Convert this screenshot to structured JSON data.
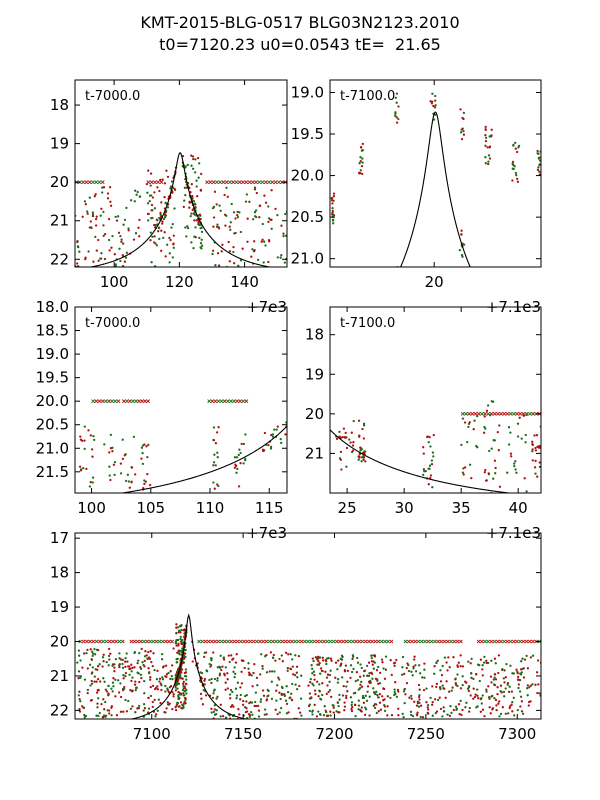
{
  "title": {
    "line1": "KMT-2015-BLG-0517 BLG03N2123.2010",
    "line2": "t0=7120.23 u0=0.0543 tE=  21.65"
  },
  "colors": {
    "green": "#1a6e1a",
    "red": "#b01010",
    "model": "#000000"
  },
  "model": {
    "t0": 7120.23,
    "u0": 0.0543,
    "tE": 21.65,
    "mag_base": 22.4,
    "mag_scale": 2.5
  },
  "chart_data": [
    {
      "id": "panel1",
      "type": "scatter",
      "label": "t-7000.0",
      "xlim": [
        7088,
        7153
      ],
      "ylim": [
        22.2,
        17.35
      ],
      "xticks": [
        7100,
        7120,
        7140
      ],
      "xtick_labels": [
        "100",
        "120",
        "140"
      ],
      "yticks": [
        18,
        19,
        20,
        21,
        22
      ],
      "ytick_labels": [
        "18",
        "19",
        "20",
        "21",
        "22"
      ],
      "offset_label": "+7e3",
      "baseline_segments": [
        [
          7088,
          7097
        ],
        [
          7110,
          7115
        ],
        [
          7128,
          7153
        ]
      ],
      "scatter_seed": 11,
      "scatter_n": 420,
      "scatter_groups": [
        {
          "x_range": [
            7088,
            7108
          ],
          "y_range": [
            20.1,
            22.2
          ]
        },
        {
          "x_range": [
            7110,
            7119
          ],
          "y_range": [
            19.6,
            22.2
          ]
        },
        {
          "x_range": [
            7121,
            7127
          ],
          "y_range": [
            19.3,
            21.8
          ]
        },
        {
          "x_range": [
            7130,
            7153
          ],
          "y_range": [
            20.1,
            22.2
          ]
        }
      ]
    },
    {
      "id": "panel2",
      "type": "scatter",
      "label": "t-7100.0",
      "xlim": [
        7100.0,
        7140.5
      ],
      "ylim": [
        21.1,
        18.85
      ],
      "xticks": [
        7120
      ],
      "xtick_labels": [
        "20"
      ],
      "yticks": [
        19.0,
        19.5,
        20.0,
        20.5,
        21.0
      ],
      "ytick_labels": [
        "19.0",
        "19.5",
        "20.0",
        "20.5",
        "21.0"
      ],
      "offset_label": "+7.1e3",
      "baseline_segments": [],
      "scatter_seed": 23,
      "scatter_n": 140,
      "scatter_groups": [
        {
          "x_range": [
            7100.3,
            7100.8
          ],
          "y_range": [
            20.2,
            20.6
          ]
        },
        {
          "x_range": [
            7105.6,
            7106.4
          ],
          "y_range": [
            19.6,
            20.0
          ]
        },
        {
          "x_range": [
            7112.5,
            7113.4
          ],
          "y_range": [
            19.0,
            19.4
          ]
        },
        {
          "x_range": [
            7119.3,
            7120.4
          ],
          "y_range": [
            19.0,
            19.2
          ]
        },
        {
          "x_range": [
            7124.8,
            7125.8
          ],
          "y_range": [
            19.2,
            19.6
          ]
        },
        {
          "x_range": [
            7129.8,
            7131.2
          ],
          "y_range": [
            19.4,
            19.9
          ]
        },
        {
          "x_range": [
            7135.0,
            7136.4
          ],
          "y_range": [
            19.6,
            20.1
          ]
        },
        {
          "x_range": [
            7139.8,
            7140.5
          ],
          "y_range": [
            19.7,
            20.0
          ]
        }
      ]
    },
    {
      "id": "panel3",
      "type": "scatter",
      "label": "t-7000.0",
      "xlim": [
        7098.6,
        7116.5
      ],
      "ylim": [
        21.95,
        18.0
      ],
      "xticks": [
        7100,
        7105,
        7110,
        7115
      ],
      "xtick_labels": [
        "100",
        "105",
        "110",
        "115"
      ],
      "yticks": [
        18.0,
        18.5,
        19.0,
        19.5,
        20.0,
        20.5,
        21.0,
        21.5
      ],
      "ytick_labels": [
        "18.0",
        "18.5",
        "19.0",
        "19.5",
        "20.0",
        "20.5",
        "21.0",
        "21.5"
      ],
      "offset_label": "+7e3",
      "baseline_segments": [
        [
          7100.0,
          7102.4
        ],
        [
          7102.6,
          7104.9
        ],
        [
          7109.8,
          7113.2
        ]
      ],
      "scatter_seed": 37,
      "scatter_n": 120,
      "scatter_groups": [
        {
          "x_range": [
            7099.0,
            7100.4
          ],
          "y_range": [
            20.4,
            21.9
          ]
        },
        {
          "x_range": [
            7101.0,
            7102.0
          ],
          "y_range": [
            20.5,
            21.9
          ]
        },
        {
          "x_range": [
            7102.4,
            7103.8
          ],
          "y_range": [
            20.7,
            21.9
          ]
        },
        {
          "x_range": [
            7104.2,
            7105.0
          ],
          "y_range": [
            20.9,
            21.9
          ]
        },
        {
          "x_range": [
            7110.2,
            7111.0
          ],
          "y_range": [
            20.4,
            21.9
          ]
        },
        {
          "x_range": [
            7112.0,
            7113.0
          ],
          "y_range": [
            20.6,
            21.9
          ]
        },
        {
          "x_range": [
            7114.4,
            7116.5
          ],
          "y_range": [
            20.5,
            21.3
          ]
        }
      ]
    },
    {
      "id": "panel4",
      "type": "scatter",
      "label": "t-7100.0",
      "xlim": [
        7123.5,
        7142.0
      ],
      "ylim": [
        22.0,
        17.3
      ],
      "xticks": [
        7125,
        7130,
        7135,
        7140
      ],
      "xtick_labels": [
        "25",
        "30",
        "35",
        "40"
      ],
      "yticks": [
        18,
        19,
        20,
        21
      ],
      "ytick_labels": [
        "18",
        "19",
        "20",
        "21"
      ],
      "offset_label": "+7.1e3",
      "baseline_segments": [
        [
          7135.0,
          7142.0
        ]
      ],
      "scatter_seed": 53,
      "scatter_n": 170,
      "scatter_groups": [
        {
          "x_range": [
            7124.0,
            7125.6
          ],
          "y_range": [
            20.1,
            21.6
          ]
        },
        {
          "x_range": [
            7126.0,
            7126.6
          ],
          "y_range": [
            20.0,
            21.6
          ]
        },
        {
          "x_range": [
            7131.5,
            7132.6
          ],
          "y_range": [
            20.5,
            21.9
          ]
        },
        {
          "x_range": [
            7135.0,
            7136.6
          ],
          "y_range": [
            20.0,
            22.0
          ]
        },
        {
          "x_range": [
            7137.0,
            7138.4
          ],
          "y_range": [
            19.6,
            22.0
          ]
        },
        {
          "x_range": [
            7139.0,
            7140.8
          ],
          "y_range": [
            20.0,
            22.0
          ]
        },
        {
          "x_range": [
            7141.2,
            7142.0
          ],
          "y_range": [
            20.2,
            21.6
          ]
        }
      ]
    },
    {
      "id": "panel5",
      "type": "scatter",
      "label": "",
      "xlim": [
        7058,
        7313
      ],
      "ylim": [
        22.25,
        16.85
      ],
      "xticks": [
        7100,
        7150,
        7200,
        7250,
        7300
      ],
      "xtick_labels": [
        "7100",
        "7150",
        "7200",
        "7250",
        "7300"
      ],
      "yticks": [
        17,
        18,
        19,
        20,
        21,
        22
      ],
      "ytick_labels": [
        "17",
        "18",
        "19",
        "20",
        "21",
        "22"
      ],
      "offset_label": "",
      "baseline_segments": [
        [
          7060,
          7085
        ],
        [
          7088,
          7112
        ],
        [
          7125,
          7232
        ],
        [
          7238,
          7270
        ],
        [
          7278,
          7313
        ]
      ],
      "scatter_seed": 71,
      "scatter_n": 1400,
      "scatter_groups": [
        {
          "x_range": [
            7059,
            7112
          ],
          "y_range": [
            20.2,
            22.2
          ]
        },
        {
          "x_range": [
            7113,
            7119
          ],
          "y_range": [
            19.5,
            22.0
          ]
        },
        {
          "x_range": [
            7122,
            7182
          ],
          "y_range": [
            20.3,
            22.25
          ]
        },
        {
          "x_range": [
            7185,
            7235
          ],
          "y_range": [
            20.4,
            22.2
          ]
        },
        {
          "x_range": [
            7237,
            7313
          ],
          "y_range": [
            20.4,
            22.2
          ]
        }
      ]
    }
  ]
}
